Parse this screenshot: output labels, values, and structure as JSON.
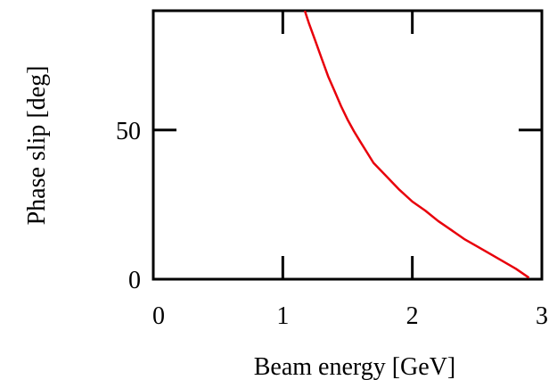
{
  "chart_data": {
    "type": "line",
    "title": "",
    "xlabel": "Beam energy [GeV]",
    "ylabel": "Phase slip [deg]",
    "xlim": [
      0,
      3
    ],
    "ylim": [
      0,
      90
    ],
    "x_ticks": [
      0,
      1,
      2,
      3
    ],
    "x_tick_labels": [
      "0",
      "1",
      "2",
      "3"
    ],
    "y_ticks": [
      0,
      50
    ],
    "y_tick_labels": [
      "0",
      "50"
    ],
    "grid": false,
    "legend": "none",
    "series": [
      {
        "color": "#e8000b",
        "x": [
          1.17,
          1.2,
          1.25,
          1.3,
          1.35,
          1.4,
          1.45,
          1.5,
          1.55,
          1.6,
          1.65,
          1.7,
          1.8,
          1.9,
          2.0,
          2.1,
          2.2,
          2.3,
          2.4,
          2.5,
          2.6,
          2.7,
          2.8,
          2.9
        ],
        "y": [
          90,
          86,
          80,
          74,
          68,
          63,
          58,
          53.5,
          49.5,
          46,
          42.5,
          39,
          34.5,
          30,
          26,
          23,
          19.5,
          16.5,
          13.5,
          11,
          8.5,
          6,
          3.5,
          0.5
        ]
      }
    ]
  }
}
